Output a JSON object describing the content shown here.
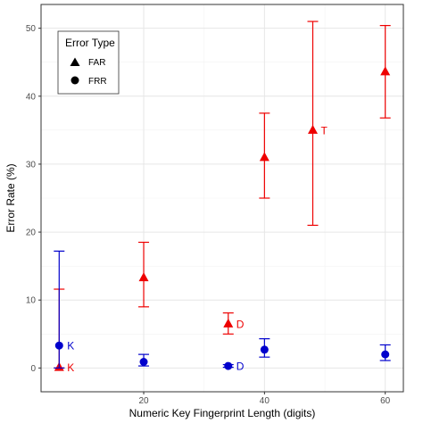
{
  "chart_data": {
    "type": "scatter",
    "xlabel": "Numeric Key Fingerprint Length (digits)",
    "ylabel": "Error Rate (%)",
    "xlim": [
      3,
      63
    ],
    "ylim": [
      -3.5,
      53.5
    ],
    "xticks": [
      20,
      40,
      60
    ],
    "yticks": [
      0,
      10,
      20,
      30,
      40,
      50
    ],
    "grid": true,
    "legend": {
      "title": "Error Type",
      "placement": "top-left",
      "entries": [
        {
          "label": "FAR",
          "shape": "triangle"
        },
        {
          "label": "FRR",
          "shape": "circle"
        }
      ]
    },
    "colors": {
      "red": "#ee0000",
      "blue": "#0000cc"
    },
    "series": [
      {
        "shape": "triangle",
        "points": [
          {
            "x": 6,
            "y": 0.1,
            "low": 0.0,
            "high": 11.6,
            "color": "red",
            "label": "K"
          },
          {
            "x": 20,
            "y": 13.3,
            "low": 9.0,
            "high": 18.5,
            "color": "red",
            "label": ""
          },
          {
            "x": 34,
            "y": 6.5,
            "low": 5.0,
            "high": 8.1,
            "color": "red",
            "label": "D"
          },
          {
            "x": 40,
            "y": 31.0,
            "low": 25.0,
            "high": 37.5,
            "color": "red",
            "label": ""
          },
          {
            "x": 48,
            "y": 35.0,
            "low": 21.0,
            "high": 51.0,
            "color": "red",
            "label": "T"
          },
          {
            "x": 60,
            "y": 43.6,
            "low": 36.8,
            "high": 50.4,
            "color": "red",
            "label": ""
          }
        ]
      },
      {
        "shape": "circle",
        "points": [
          {
            "x": 6,
            "y": 3.3,
            "low": 0.0,
            "high": 17.2,
            "color": "blue",
            "label": "K"
          },
          {
            "x": 20,
            "y": 0.9,
            "low": 0.3,
            "high": 2.0,
            "color": "blue",
            "label": ""
          },
          {
            "x": 34,
            "y": 0.3,
            "low": 0.1,
            "high": 0.5,
            "color": "blue",
            "label": "D"
          },
          {
            "x": 40,
            "y": 2.7,
            "low": 1.6,
            "high": 4.3,
            "color": "blue",
            "label": ""
          },
          {
            "x": 60,
            "y": 2.0,
            "low": 1.1,
            "high": 3.4,
            "color": "blue",
            "label": ""
          }
        ]
      }
    ]
  }
}
